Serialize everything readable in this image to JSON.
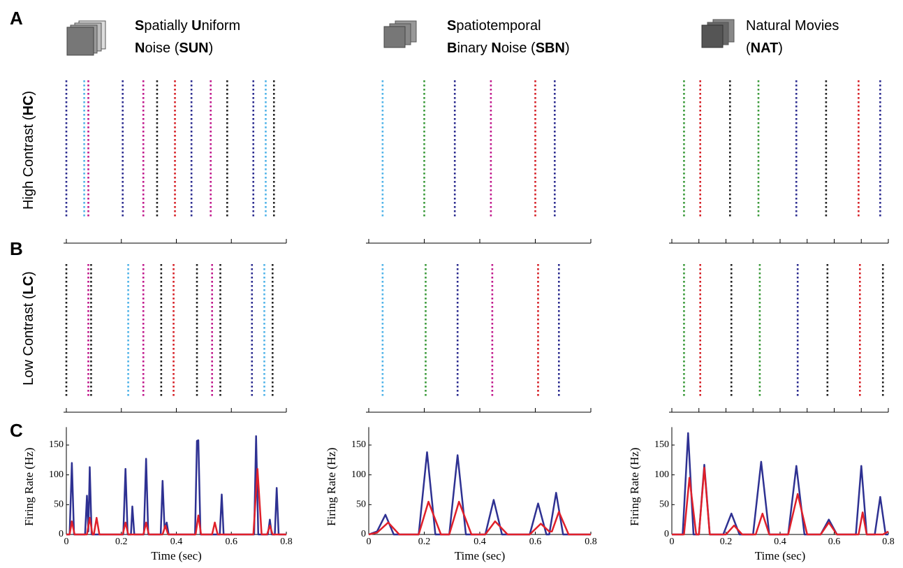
{
  "panel_letters": [
    "A",
    "B",
    "C"
  ],
  "row_labels": [
    [
      {
        "text": "High Contrast (",
        "bold": false
      },
      {
        "text": "HC",
        "bold": true
      },
      {
        "text": ")",
        "bold": false
      }
    ],
    [
      {
        "text": "Low Contrast (",
        "bold": false
      },
      {
        "text": "LC",
        "bold": true
      },
      {
        "text": ")",
        "bold": false
      }
    ]
  ],
  "chart_data": [
    {
      "type": "raster-rate",
      "header": [
        [
          {
            "text": "S",
            "bold": true
          },
          {
            "text": "patially ",
            "bold": false
          },
          {
            "text": "U",
            "bold": true
          },
          {
            "text": "niform",
            "bold": false
          }
        ],
        [
          {
            "text": "N",
            "bold": true
          },
          {
            "text": "oise (",
            "bold": false
          },
          {
            "text": "SUN",
            "bold": true
          },
          {
            "text": ")",
            "bold": false
          }
        ]
      ],
      "raster_xlim": [
        0,
        0.8
      ],
      "raster_xticks": [
        0,
        0.2,
        0.4,
        0.6,
        0.8
      ],
      "hc": [
        {
          "t": 0.0,
          "color": "#2b2b8f"
        },
        {
          "t": 0.065,
          "color": "#4fb3e8"
        },
        {
          "t": 0.08,
          "color": "#c0198c"
        },
        {
          "t": 0.205,
          "color": "#2b2b8f"
        },
        {
          "t": 0.28,
          "color": "#c0198c"
        },
        {
          "t": 0.33,
          "color": "#222222"
        },
        {
          "t": 0.395,
          "color": "#d62027"
        },
        {
          "t": 0.455,
          "color": "#2b2b8f"
        },
        {
          "t": 0.525,
          "color": "#c0198c"
        },
        {
          "t": 0.585,
          "color": "#222222"
        },
        {
          "t": 0.68,
          "color": "#2b2b8f"
        },
        {
          "t": 0.725,
          "color": "#4fb3e8"
        },
        {
          "t": 0.755,
          "color": "#222222"
        }
      ],
      "lc": [
        {
          "t": 0.0,
          "color": "#222222"
        },
        {
          "t": 0.08,
          "color": "#c0198c"
        },
        {
          "t": 0.09,
          "color": "#222222"
        },
        {
          "t": 0.225,
          "color": "#4fb3e8"
        },
        {
          "t": 0.28,
          "color": "#c0198c"
        },
        {
          "t": 0.345,
          "color": "#222222"
        },
        {
          "t": 0.39,
          "color": "#d62027"
        },
        {
          "t": 0.475,
          "color": "#222222"
        },
        {
          "t": 0.53,
          "color": "#c0198c"
        },
        {
          "t": 0.56,
          "color": "#222222"
        },
        {
          "t": 0.675,
          "color": "#2b2b8f"
        },
        {
          "t": 0.72,
          "color": "#4fb3e8"
        },
        {
          "t": 0.75,
          "color": "#222222"
        }
      ],
      "xlabel": "Time (sec)",
      "ylabel": "Firing Rate (Hz)",
      "xlim": [
        0,
        0.8
      ],
      "xticks": [
        0,
        0.2,
        0.4,
        0.6,
        0.8
      ],
      "ylim": [
        0,
        180
      ],
      "yticks": [
        0,
        50,
        100,
        150
      ],
      "series": [
        {
          "color": "#2e3192",
          "x": [
            0,
            0.012,
            0.02,
            0.028,
            0.068,
            0.075,
            0.08,
            0.085,
            0.092,
            0.207,
            0.215,
            0.223,
            0.235,
            0.24,
            0.247,
            0.282,
            0.29,
            0.298,
            0.343,
            0.35,
            0.357,
            0.365,
            0.372,
            0.468,
            0.475,
            0.48,
            0.488,
            0.558,
            0.565,
            0.572,
            0.683,
            0.69,
            0.698,
            0.733,
            0.74,
            0.747,
            0.758,
            0.765,
            0.772,
            0.8
          ],
          "values": [
            0,
            0,
            120,
            0,
            0,
            65,
            5,
            113,
            0,
            0,
            110,
            0,
            0,
            47,
            0,
            0,
            127,
            0,
            0,
            90,
            10,
            20,
            0,
            0,
            157,
            158,
            0,
            0,
            67,
            0,
            0,
            165,
            0,
            0,
            25,
            0,
            0,
            78,
            0,
            0
          ]
        },
        {
          "color": "#e0202a",
          "x": [
            0,
            0.012,
            0.02,
            0.03,
            0.075,
            0.085,
            0.095,
            0.1,
            0.11,
            0.12,
            0.205,
            0.215,
            0.225,
            0.28,
            0.29,
            0.3,
            0.35,
            0.36,
            0.37,
            0.47,
            0.48,
            0.49,
            0.53,
            0.54,
            0.55,
            0.68,
            0.695,
            0.71,
            0.73,
            0.74,
            0.75,
            0.8
          ],
          "values": [
            0,
            0,
            22,
            0,
            0,
            28,
            0,
            0,
            28,
            0,
            0,
            20,
            0,
            0,
            20,
            0,
            0,
            15,
            0,
            0,
            32,
            0,
            0,
            20,
            0,
            0,
            110,
            0,
            0,
            15,
            0,
            0
          ]
        }
      ]
    },
    {
      "type": "raster-rate",
      "header": [
        [
          {
            "text": "S",
            "bold": true
          },
          {
            "text": "patiotemporal",
            "bold": false
          }
        ],
        [
          {
            "text": "B",
            "bold": true
          },
          {
            "text": "inary ",
            "bold": false
          },
          {
            "text": "N",
            "bold": true
          },
          {
            "text": "oise (",
            "bold": false
          },
          {
            "text": "SBN",
            "bold": true
          },
          {
            "text": ")",
            "bold": false
          }
        ]
      ],
      "raster_xlim": [
        0,
        0.8
      ],
      "raster_xticks": [
        0,
        0.2,
        0.4,
        0.6,
        0.8
      ],
      "hc": [
        {
          "t": 0.05,
          "color": "#4fb3e8"
        },
        {
          "t": 0.2,
          "color": "#3a9a3a"
        },
        {
          "t": 0.31,
          "color": "#2b2b8f"
        },
        {
          "t": 0.44,
          "color": "#c0198c"
        },
        {
          "t": 0.6,
          "color": "#d62027"
        },
        {
          "t": 0.67,
          "color": "#2b2b8f"
        }
      ],
      "lc": [
        {
          "t": 0.05,
          "color": "#4fb3e8"
        },
        {
          "t": 0.205,
          "color": "#3a9a3a"
        },
        {
          "t": 0.32,
          "color": "#2b2b8f"
        },
        {
          "t": 0.445,
          "color": "#c0198c"
        },
        {
          "t": 0.61,
          "color": "#d62027"
        },
        {
          "t": 0.685,
          "color": "#2b2b8f"
        }
      ],
      "xlabel": "Time (sec)",
      "ylabel": "Firing Rate (Hz)",
      "xlim": [
        0,
        0.8
      ],
      "xticks": [
        0,
        0.2,
        0.4,
        0.6,
        0.8
      ],
      "ylim": [
        0,
        180
      ],
      "yticks": [
        0,
        50,
        100,
        150
      ],
      "series": [
        {
          "color": "#2e3192",
          "x": [
            0,
            0.03,
            0.06,
            0.09,
            0.18,
            0.21,
            0.24,
            0.29,
            0.32,
            0.35,
            0.42,
            0.45,
            0.48,
            0.58,
            0.61,
            0.64,
            0.65,
            0.675,
            0.7,
            0.8
          ],
          "values": [
            0,
            5,
            33,
            0,
            0,
            138,
            0,
            0,
            133,
            0,
            0,
            58,
            0,
            0,
            52,
            0,
            0,
            70,
            0,
            0
          ]
        },
        {
          "color": "#e0202a",
          "x": [
            0,
            0.03,
            0.07,
            0.11,
            0.18,
            0.215,
            0.26,
            0.29,
            0.325,
            0.37,
            0.42,
            0.455,
            0.5,
            0.58,
            0.62,
            0.65,
            0.66,
            0.685,
            0.72,
            0.8
          ],
          "values": [
            0,
            3,
            20,
            0,
            0,
            55,
            0,
            0,
            55,
            0,
            0,
            22,
            0,
            0,
            18,
            5,
            5,
            38,
            0,
            0
          ]
        }
      ]
    },
    {
      "type": "raster-rate",
      "header": [
        [
          {
            "text": "Natural Movies",
            "bold": false
          }
        ],
        [
          {
            "text": "(",
            "bold": false
          },
          {
            "text": "NAT",
            "bold": true
          },
          {
            "text": ")",
            "bold": false
          }
        ]
      ],
      "raster_xlim": [
        0,
        0.8
      ],
      "raster_xticks": [
        0,
        0.1,
        0.2,
        0.3,
        0.4,
        0.5,
        0.6,
        0.7,
        0.8
      ],
      "hc": [
        {
          "t": 0.045,
          "color": "#3a9a3a"
        },
        {
          "t": 0.105,
          "color": "#d62027"
        },
        {
          "t": 0.215,
          "color": "#222222"
        },
        {
          "t": 0.32,
          "color": "#3a9a3a"
        },
        {
          "t": 0.46,
          "color": "#2b2b8f"
        },
        {
          "t": 0.57,
          "color": "#222222"
        },
        {
          "t": 0.69,
          "color": "#d62027"
        },
        {
          "t": 0.77,
          "color": "#2b2b8f"
        }
      ],
      "lc": [
        {
          "t": 0.045,
          "color": "#3a9a3a"
        },
        {
          "t": 0.105,
          "color": "#d62027"
        },
        {
          "t": 0.22,
          "color": "#222222"
        },
        {
          "t": 0.325,
          "color": "#3a9a3a"
        },
        {
          "t": 0.465,
          "color": "#2b2b8f"
        },
        {
          "t": 0.575,
          "color": "#222222"
        },
        {
          "t": 0.695,
          "color": "#d62027"
        },
        {
          "t": 0.78,
          "color": "#222222"
        }
      ],
      "xlabel": "Time (sec)",
      "ylabel": "Firing Rate (Hz)",
      "xlim": [
        0,
        0.8
      ],
      "xticks": [
        0,
        0.2,
        0.4,
        0.6,
        0.8
      ],
      "ylim": [
        0,
        180
      ],
      "yticks": [
        0,
        50,
        100,
        150
      ],
      "series": [
        {
          "color": "#2e3192",
          "x": [
            0,
            0.04,
            0.06,
            0.08,
            0.1,
            0.12,
            0.14,
            0.19,
            0.22,
            0.25,
            0.3,
            0.33,
            0.36,
            0.43,
            0.46,
            0.49,
            0.55,
            0.58,
            0.61,
            0.68,
            0.7,
            0.72,
            0.75,
            0.77,
            0.79,
            0.8
          ],
          "values": [
            0,
            0,
            170,
            0,
            0,
            117,
            0,
            0,
            35,
            0,
            0,
            122,
            0,
            0,
            115,
            0,
            0,
            25,
            0,
            0,
            115,
            0,
            0,
            63,
            0,
            0
          ]
        },
        {
          "color": "#e0202a",
          "x": [
            0,
            0.045,
            0.065,
            0.09,
            0.1,
            0.12,
            0.14,
            0.2,
            0.23,
            0.26,
            0.31,
            0.335,
            0.36,
            0.43,
            0.465,
            0.5,
            0.55,
            0.58,
            0.61,
            0.69,
            0.705,
            0.72,
            0.78,
            0.8
          ],
          "values": [
            0,
            0,
            95,
            0,
            0,
            112,
            0,
            0,
            15,
            0,
            0,
            35,
            0,
            0,
            68,
            0,
            0,
            20,
            0,
            0,
            37,
            0,
            0,
            5
          ]
        }
      ]
    }
  ]
}
